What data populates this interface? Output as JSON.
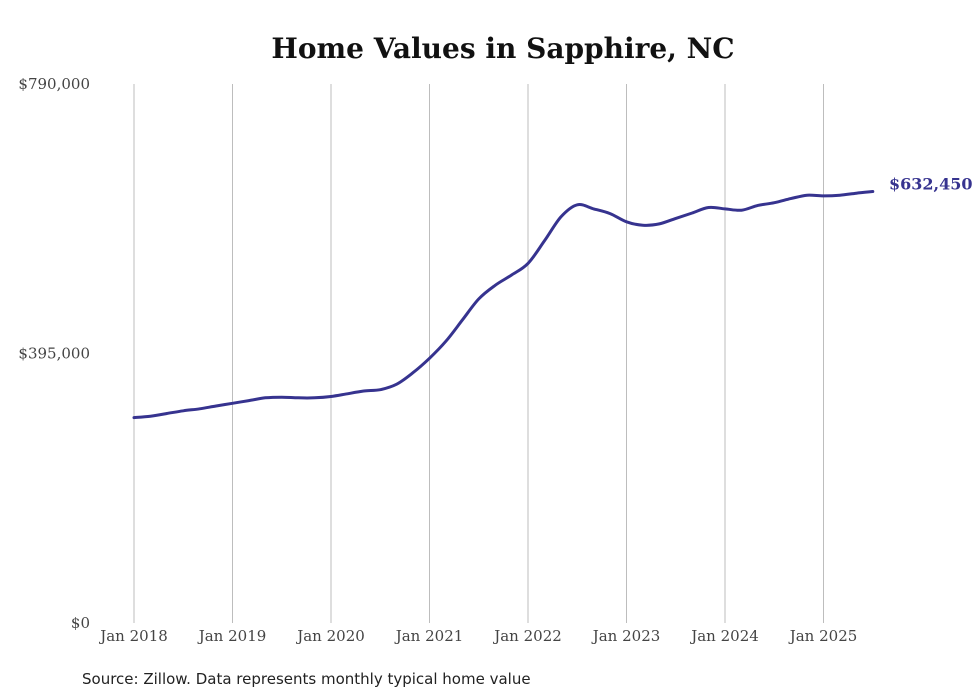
{
  "chart_data": {
    "type": "line",
    "title": "Home Values in Sapphire, NC",
    "ylim": [
      0,
      790000
    ],
    "y_ticks": [
      "$0",
      "$395,000",
      "$790,000"
    ],
    "y_tick_values": [
      0,
      395000,
      790000
    ],
    "x_ticks": [
      "Jan 2018",
      "Jan 2019",
      "Jan 2020",
      "Jan 2021",
      "Jan 2022",
      "Jan 2023",
      "Jan 2024",
      "Jan 2025"
    ],
    "grid": "vertical",
    "line_color": "#36338f",
    "series": [
      {
        "end_label": "$632,450",
        "points": [
          [
            "2018-01",
            301000
          ],
          [
            "2018-03",
            303000
          ],
          [
            "2018-05",
            307000
          ],
          [
            "2018-07",
            311000
          ],
          [
            "2018-09",
            314000
          ],
          [
            "2018-11",
            318000
          ],
          [
            "2019-01",
            322000
          ],
          [
            "2019-03",
            326000
          ],
          [
            "2019-05",
            330000
          ],
          [
            "2019-07",
            331000
          ],
          [
            "2019-09",
            330000
          ],
          [
            "2019-11",
            330000
          ],
          [
            "2020-01",
            332000
          ],
          [
            "2020-03",
            336000
          ],
          [
            "2020-05",
            340000
          ],
          [
            "2020-07",
            342000
          ],
          [
            "2020-09",
            350000
          ],
          [
            "2020-11",
            367000
          ],
          [
            "2021-01",
            388000
          ],
          [
            "2021-03",
            413000
          ],
          [
            "2021-05",
            444000
          ],
          [
            "2021-07",
            475000
          ],
          [
            "2021-09",
            495000
          ],
          [
            "2021-11",
            510000
          ],
          [
            "2022-01",
            527000
          ],
          [
            "2022-03",
            560000
          ],
          [
            "2022-05",
            595000
          ],
          [
            "2022-07",
            613000
          ],
          [
            "2022-09",
            607000
          ],
          [
            "2022-11",
            600000
          ],
          [
            "2023-01",
            588000
          ],
          [
            "2023-03",
            583000
          ],
          [
            "2023-05",
            585000
          ],
          [
            "2023-07",
            593000
          ],
          [
            "2023-09",
            601000
          ],
          [
            "2023-11",
            609000
          ],
          [
            "2024-01",
            607000
          ],
          [
            "2024-03",
            605000
          ],
          [
            "2024-05",
            612000
          ],
          [
            "2024-07",
            616000
          ],
          [
            "2024-09",
            622000
          ],
          [
            "2024-11",
            627000
          ],
          [
            "2025-01",
            626000
          ],
          [
            "2025-03",
            627000
          ],
          [
            "2025-05",
            630000
          ],
          [
            "2025-07",
            632450
          ]
        ]
      }
    ]
  },
  "footer": {
    "source": "Source: Zillow. Data represents monthly typical home value"
  }
}
